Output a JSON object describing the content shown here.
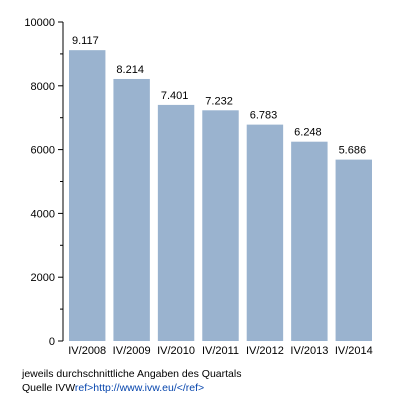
{
  "chart_data": {
    "type": "bar",
    "categories": [
      "IV/2008",
      "IV/2009",
      "IV/2010",
      "IV/2011",
      "IV/2012",
      "IV/2013",
      "IV/2014"
    ],
    "values": [
      9117,
      8214,
      7401,
      7232,
      6783,
      6248,
      5686
    ],
    "value_labels": [
      "9.117",
      "8.214",
      "7.401",
      "7.232",
      "6.783",
      "6.248",
      "5.686"
    ],
    "title": "",
    "xlabel": "",
    "ylabel": "",
    "ylim": [
      0,
      10000
    ],
    "yticks": [
      0,
      2000,
      4000,
      6000,
      8000,
      10000
    ],
    "ytick_labels": [
      "0",
      "2000",
      "4000",
      "6000",
      "8000",
      "10000"
    ],
    "grid": false,
    "legend": "none",
    "bar_color": "#9ab3cf"
  },
  "notes": {
    "line1": "jeweils durchschnittliche Angaben des Quartals",
    "line2_prefix": "Quelle IVW",
    "line2_link": "ref>http://www.ivw.eu/</ref>"
  }
}
